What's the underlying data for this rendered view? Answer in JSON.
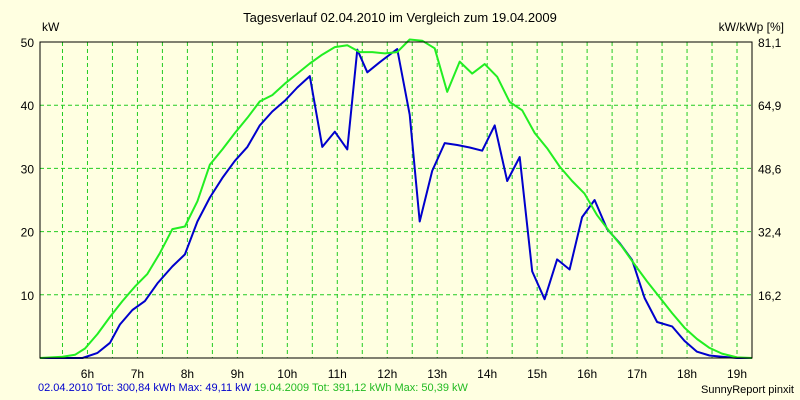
{
  "chart_data": {
    "type": "line",
    "title": "Tagesverlauf 02.04.2010 im Vergleich zum 19.04.2009",
    "ylabel": "kW",
    "y2label": "kW/kWp [%]",
    "ylim": [
      0,
      50
    ],
    "y2lim": [
      0,
      81.1
    ],
    "xlim": [
      5.05,
      19.3
    ],
    "yticks": [
      10,
      20,
      30,
      40,
      50
    ],
    "y2ticks": [
      "16,2",
      "32,4",
      "48,6",
      "64,9",
      "81,1"
    ],
    "xticks": [
      "6h",
      "7h",
      "8h",
      "9h",
      "10h",
      "11h",
      "12h",
      "13h",
      "14h",
      "15h",
      "16h",
      "17h",
      "18h",
      "19h"
    ],
    "grid": true,
    "series": [
      {
        "name": "02.04.2010",
        "color": "#0000cc",
        "x": [
          5.05,
          5.9,
          6.2,
          6.45,
          6.65,
          6.9,
          7.15,
          7.4,
          7.7,
          7.95,
          8.2,
          8.45,
          8.7,
          8.95,
          9.2,
          9.45,
          9.7,
          9.95,
          10.2,
          10.45,
          10.7,
          10.95,
          11.2,
          11.4,
          11.6,
          11.85,
          12.2,
          12.45,
          12.65,
          12.9,
          13.15,
          13.4,
          13.65,
          13.9,
          14.15,
          14.4,
          14.65,
          14.9,
          15.15,
          15.4,
          15.65,
          15.9,
          16.15,
          16.4,
          16.65,
          16.9,
          17.15,
          17.4,
          17.7,
          17.95,
          18.2,
          18.45,
          18.7,
          19.0,
          19.3
        ],
        "y": [
          0,
          0,
          0.8,
          2.4,
          5.3,
          7.6,
          9.0,
          11.8,
          14.5,
          16.4,
          21.6,
          25.4,
          28.5,
          31.2,
          33.4,
          36.8,
          39.0,
          40.7,
          42.8,
          44.6,
          33.4,
          35.8,
          33.0,
          48.8,
          45.2,
          46.8,
          48.9,
          38.5,
          21.6,
          29.6,
          34.0,
          33.7,
          33.3,
          32.8,
          36.8,
          28.0,
          31.8,
          13.7,
          9.3,
          15.6,
          14.0,
          22.3,
          25.0,
          20.4,
          18.2,
          15.5,
          9.5,
          5.7,
          5.0,
          2.7,
          1.0,
          0.4,
          0.2,
          0,
          0
        ]
      },
      {
        "name": "19.04.2009",
        "color": "#22ee22",
        "x": [
          5.05,
          5.5,
          5.75,
          5.95,
          6.2,
          6.45,
          6.7,
          6.95,
          7.2,
          7.45,
          7.7,
          7.95,
          8.2,
          8.45,
          8.7,
          8.95,
          9.2,
          9.45,
          9.7,
          9.95,
          10.2,
          10.45,
          10.7,
          10.95,
          11.2,
          11.45,
          11.7,
          11.95,
          12.2,
          12.45,
          12.7,
          12.95,
          13.2,
          13.45,
          13.7,
          13.95,
          14.2,
          14.45,
          14.7,
          14.95,
          15.2,
          15.45,
          15.7,
          15.95,
          16.2,
          16.45,
          16.7,
          16.95,
          17.2,
          17.45,
          17.7,
          17.95,
          18.2,
          18.45,
          18.7,
          19.0,
          19.3
        ],
        "y": [
          0,
          0.2,
          0.5,
          1.5,
          3.8,
          6.5,
          9.0,
          11.3,
          13.3,
          16.6,
          20.4,
          20.8,
          24.8,
          30.6,
          33.0,
          35.6,
          38.0,
          40.6,
          41.6,
          43.4,
          45.0,
          46.6,
          48.0,
          49.2,
          49.5,
          48.4,
          48.4,
          48.2,
          48.4,
          50.4,
          50.2,
          49.0,
          42.1,
          46.9,
          45.0,
          46.5,
          44.5,
          40.5,
          39.2,
          35.6,
          33.2,
          30.3,
          28.0,
          26.0,
          22.6,
          20.0,
          17.6,
          14.8,
          12.1,
          9.6,
          7.1,
          4.8,
          3.0,
          1.6,
          0.7,
          0.1,
          0
        ]
      }
    ]
  },
  "footer": {
    "series1_label": "02.04.2010 Tot: 300,84 kWh Max: 49,11 kW",
    "series2_label": "19.04.2009 Tot: 391,12 kWh Max: 50,39 kW",
    "credit": "SunnyReport pinxit"
  }
}
